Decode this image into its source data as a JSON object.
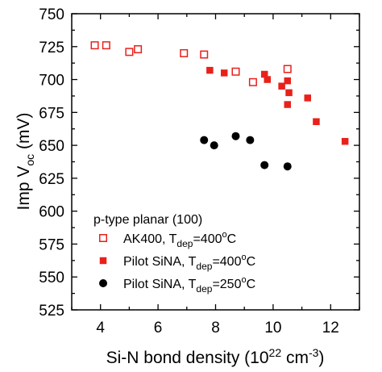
{
  "chart_data": {
    "type": "scatter",
    "xlabel": "Si-N bond density (10",
    "xlabel_sup": "22",
    "xlabel_unit": " cm",
    "xlabel_unit_sup": "-3",
    "xlabel_close": ")",
    "ylabel": "Imp V",
    "ylabel_sub": "oc",
    "ylabel_unit": " (mV)",
    "xlim": [
      3,
      13
    ],
    "ylim": [
      525,
      750
    ],
    "xticks": [
      "4",
      "6",
      "8",
      "10",
      "12"
    ],
    "yticks": [
      "525",
      "550",
      "575",
      "600",
      "625",
      "650",
      "675",
      "700",
      "725",
      "750"
    ],
    "legend_title": "p-type planar (100)",
    "legend_position": "bottom-left",
    "colors": {
      "red": "#e8211b",
      "black": "#000000"
    },
    "series": [
      {
        "name": "AK400, T",
        "name_sub": "dep",
        "name_tail": "=400",
        "name_sup": "o",
        "name_end": "C",
        "marker": "open-square",
        "color": "#e8211b",
        "x": [
          3.8,
          4.2,
          5.0,
          5.3,
          6.9,
          7.6,
          8.7,
          9.3,
          10.5
        ],
        "y": [
          726,
          726,
          721,
          723,
          720,
          719,
          706,
          698,
          708
        ]
      },
      {
        "name": "Pilot SiNA, T",
        "name_sub": "dep",
        "name_tail": "=400",
        "name_sup": "o",
        "name_end": "C",
        "marker": "filled-square",
        "color": "#e8211b",
        "x": [
          7.8,
          8.3,
          9.7,
          9.8,
          10.3,
          10.5,
          10.55,
          10.5,
          11.2,
          11.5,
          12.5
        ],
        "y": [
          707,
          705,
          704,
          700,
          695,
          699,
          690,
          681,
          686,
          668,
          653
        ]
      },
      {
        "name": "Pilot SiNA, T",
        "name_sub": "dep",
        "name_tail": "=250",
        "name_sup": "o",
        "name_end": "C",
        "marker": "filled-circle",
        "color": "#000000",
        "x": [
          7.6,
          7.95,
          8.7,
          9.2,
          9.7,
          10.5
        ],
        "y": [
          654,
          650,
          657,
          654,
          635,
          634
        ]
      }
    ]
  }
}
